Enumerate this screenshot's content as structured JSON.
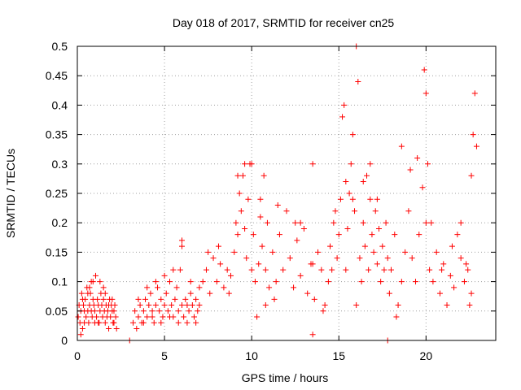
{
  "chart_data": {
    "type": "scatter",
    "title": "Day 018 of 2017, SRMTID for receiver cn25",
    "xlabel": "GPS time / hours",
    "ylabel": "SRMTID / TECUs",
    "xlim": [
      0,
      24
    ],
    "ylim": [
      0,
      0.5
    ],
    "x_ticks": [
      0,
      5,
      10,
      15,
      20
    ],
    "x_tick_labels": [
      "0",
      "5",
      "10",
      "15",
      "20"
    ],
    "y_ticks": [
      0,
      0.05,
      0.1,
      0.15,
      0.2,
      0.25,
      0.3,
      0.35,
      0.4,
      0.45,
      0.5
    ],
    "y_tick_labels": [
      "0",
      "0.05",
      "0.1",
      "0.15",
      "0.2",
      "0.25",
      "0.3",
      "0.35",
      "0.4",
      "0.45",
      "0.5"
    ],
    "grid": true,
    "marker": "+",
    "series": [
      {
        "name": "SRMTID",
        "color": "#ff0000",
        "points": [
          [
            0.05,
            0.04
          ],
          [
            0.1,
            0.06
          ],
          [
            0.15,
            0.03
          ],
          [
            0.2,
            0.05
          ],
          [
            0.25,
            0.08
          ],
          [
            0.3,
            0.02
          ],
          [
            0.35,
            0.06
          ],
          [
            0.4,
            0.05
          ],
          [
            0.45,
            0.07
          ],
          [
            0.5,
            0.04
          ],
          [
            0.55,
            0.09
          ],
          [
            0.6,
            0.05
          ],
          [
            0.65,
            0.03
          ],
          [
            0.7,
            0.06
          ],
          [
            0.75,
            0.08
          ],
          [
            0.8,
            0.05
          ],
          [
            0.85,
            0.04
          ],
          [
            0.9,
            0.1
          ],
          [
            0.95,
            0.06
          ],
          [
            1.0,
            0.05
          ],
          [
            1.05,
            0.11
          ],
          [
            1.1,
            0.04
          ],
          [
            1.15,
            0.07
          ],
          [
            1.2,
            0.06
          ],
          [
            1.25,
            0.03
          ],
          [
            1.3,
            0.05
          ],
          [
            1.35,
            0.08
          ],
          [
            1.4,
            0.06
          ],
          [
            1.45,
            0.04
          ],
          [
            1.5,
            0.07
          ],
          [
            1.55,
            0.05
          ],
          [
            1.6,
            0.03
          ],
          [
            1.65,
            0.06
          ],
          [
            1.7,
            0.04
          ],
          [
            1.75,
            0.05
          ],
          [
            1.8,
            0.02
          ],
          [
            1.85,
            0.07
          ],
          [
            1.9,
            0.04
          ],
          [
            1.95,
            0.06
          ],
          [
            2.0,
            0.05
          ],
          [
            2.05,
            0.03
          ],
          [
            2.1,
            0.05
          ],
          [
            2.15,
            0.06
          ],
          [
            2.2,
            0.04
          ],
          [
            2.25,
            0.02
          ],
          [
            0.3,
            0.07
          ],
          [
            0.6,
            0.08
          ],
          [
            0.9,
            0.07
          ],
          [
            1.2,
            0.03
          ],
          [
            1.5,
            0.09
          ],
          [
            1.8,
            0.06
          ],
          [
            2.1,
            0.03
          ],
          [
            0.4,
            0.03
          ],
          [
            0.8,
            0.1
          ],
          [
            1.0,
            0.03
          ],
          [
            1.6,
            0.08
          ],
          [
            2.0,
            0.07
          ],
          [
            0.2,
            0.01
          ],
          [
            0.7,
            0.09
          ],
          [
            1.3,
            0.1
          ],
          [
            3.0,
            0.0
          ],
          [
            3.2,
            0.03
          ],
          [
            3.3,
            0.05
          ],
          [
            3.4,
            0.02
          ],
          [
            3.5,
            0.04
          ],
          [
            3.6,
            0.06
          ],
          [
            3.7,
            0.03
          ],
          [
            3.8,
            0.05
          ],
          [
            3.9,
            0.07
          ],
          [
            4.0,
            0.04
          ],
          [
            4.1,
            0.06
          ],
          [
            4.2,
            0.08
          ],
          [
            4.3,
            0.05
          ],
          [
            4.4,
            0.03
          ],
          [
            4.5,
            0.06
          ],
          [
            4.6,
            0.09
          ],
          [
            4.7,
            0.05
          ],
          [
            4.8,
            0.07
          ],
          [
            4.9,
            0.04
          ],
          [
            5.0,
            0.06
          ],
          [
            5.1,
            0.08
          ],
          [
            5.2,
            0.05
          ],
          [
            5.3,
            0.1
          ],
          [
            5.4,
            0.06
          ],
          [
            5.5,
            0.04
          ],
          [
            5.6,
            0.07
          ],
          [
            5.7,
            0.09
          ],
          [
            5.8,
            0.05
          ],
          [
            5.9,
            0.12
          ],
          [
            6.0,
            0.06
          ],
          [
            6.1,
            0.04
          ],
          [
            6.2,
            0.07
          ],
          [
            6.3,
            0.03
          ],
          [
            6.4,
            0.05
          ],
          [
            6.5,
            0.08
          ],
          [
            6.6,
            0.06
          ],
          [
            6.7,
            0.04
          ],
          [
            6.8,
            0.07
          ],
          [
            6.9,
            0.05
          ],
          [
            7.0,
            0.09
          ],
          [
            3.5,
            0.07
          ],
          [
            4.0,
            0.09
          ],
          [
            4.5,
            0.1
          ],
          [
            5.0,
            0.11
          ],
          [
            5.5,
            0.12
          ],
          [
            6.0,
            0.16
          ],
          [
            6.5,
            0.1
          ],
          [
            7.0,
            0.06
          ],
          [
            3.8,
            0.03
          ],
          [
            4.3,
            0.04
          ],
          [
            4.8,
            0.03
          ],
          [
            5.3,
            0.04
          ],
          [
            5.8,
            0.03
          ],
          [
            6.3,
            0.06
          ],
          [
            6.8,
            0.03
          ],
          [
            6.0,
            0.17
          ],
          [
            7.2,
            0.1
          ],
          [
            7.4,
            0.12
          ],
          [
            7.6,
            0.08
          ],
          [
            7.8,
            0.14
          ],
          [
            8.0,
            0.1
          ],
          [
            8.2,
            0.13
          ],
          [
            8.4,
            0.09
          ],
          [
            8.6,
            0.12
          ],
          [
            8.8,
            0.11
          ],
          [
            9.0,
            0.15
          ],
          [
            9.1,
            0.2
          ],
          [
            9.2,
            0.18
          ],
          [
            9.3,
            0.25
          ],
          [
            9.4,
            0.22
          ],
          [
            9.5,
            0.28
          ],
          [
            9.6,
            0.19
          ],
          [
            9.7,
            0.14
          ],
          [
            9.8,
            0.24
          ],
          [
            9.9,
            0.3
          ],
          [
            10.0,
            0.12
          ],
          [
            10.1,
            0.18
          ],
          [
            10.2,
            0.1
          ],
          [
            10.3,
            0.04
          ],
          [
            10.4,
            0.13
          ],
          [
            10.5,
            0.21
          ],
          [
            10.6,
            0.16
          ],
          [
            10.7,
            0.28
          ],
          [
            10.8,
            0.12
          ],
          [
            10.9,
            0.2
          ],
          [
            11.0,
            0.09
          ],
          [
            11.2,
            0.15
          ],
          [
            11.4,
            0.1
          ],
          [
            11.6,
            0.18
          ],
          [
            11.8,
            0.12
          ],
          [
            12.0,
            0.22
          ],
          [
            12.2,
            0.14
          ],
          [
            12.4,
            0.09
          ],
          [
            12.6,
            0.17
          ],
          [
            12.8,
            0.11
          ],
          [
            13.0,
            0.19
          ],
          [
            13.2,
            0.08
          ],
          [
            13.4,
            0.13
          ],
          [
            13.5,
            0.3
          ],
          [
            13.6,
            0.07
          ],
          [
            13.8,
            0.15
          ],
          [
            14.0,
            0.12
          ],
          [
            14.2,
            0.06
          ],
          [
            14.4,
            0.1
          ],
          [
            7.5,
            0.15
          ],
          [
            8.1,
            0.16
          ],
          [
            8.7,
            0.08
          ],
          [
            9.2,
            0.28
          ],
          [
            9.6,
            0.3
          ],
          [
            10.0,
            0.3
          ],
          [
            10.5,
            0.24
          ],
          [
            11.5,
            0.23
          ],
          [
            12.5,
            0.2
          ],
          [
            13.5,
            0.13
          ],
          [
            14.1,
            0.05
          ],
          [
            13.5,
            0.01
          ],
          [
            10.8,
            0.06
          ],
          [
            11.3,
            0.07
          ],
          [
            12.8,
            0.2
          ],
          [
            14.5,
            0.16
          ],
          [
            14.6,
            0.12
          ],
          [
            14.7,
            0.2
          ],
          [
            14.8,
            0.22
          ],
          [
            14.9,
            0.14
          ],
          [
            15.0,
            0.18
          ],
          [
            15.1,
            0.24
          ],
          [
            15.2,
            0.38
          ],
          [
            15.3,
            0.4
          ],
          [
            15.4,
            0.27
          ],
          [
            15.5,
            0.19
          ],
          [
            15.6,
            0.25
          ],
          [
            15.7,
            0.3
          ],
          [
            15.8,
            0.35
          ],
          [
            15.9,
            0.22
          ],
          [
            16.0,
            0.5
          ],
          [
            16.1,
            0.44
          ],
          [
            16.2,
            0.14
          ],
          [
            16.3,
            0.1
          ],
          [
            16.4,
            0.2
          ],
          [
            16.5,
            0.16
          ],
          [
            16.6,
            0.28
          ],
          [
            16.7,
            0.12
          ],
          [
            16.8,
            0.24
          ],
          [
            16.9,
            0.18
          ],
          [
            17.0,
            0.15
          ],
          [
            17.1,
            0.22
          ],
          [
            17.2,
            0.13
          ],
          [
            17.3,
            0.19
          ],
          [
            17.4,
            0.1
          ],
          [
            17.5,
            0.16
          ],
          [
            17.6,
            0.12
          ],
          [
            17.7,
            0.2
          ],
          [
            17.8,
            0.14
          ],
          [
            17.9,
            0.08
          ],
          [
            18.0,
            0.12
          ],
          [
            18.2,
            0.18
          ],
          [
            18.4,
            0.06
          ],
          [
            18.6,
            0.1
          ],
          [
            18.8,
            0.15
          ],
          [
            19.0,
            0.22
          ],
          [
            19.2,
            0.14
          ],
          [
            19.4,
            0.1
          ],
          [
            19.6,
            0.18
          ],
          [
            19.8,
            0.26
          ],
          [
            19.9,
            0.46
          ],
          [
            20.0,
            0.42
          ],
          [
            20.1,
            0.3
          ],
          [
            20.2,
            0.12
          ],
          [
            20.4,
            0.1
          ],
          [
            20.6,
            0.15
          ],
          [
            20.8,
            0.08
          ],
          [
            21.0,
            0.13
          ],
          [
            21.2,
            0.06
          ],
          [
            21.4,
            0.11
          ],
          [
            21.6,
            0.09
          ],
          [
            21.8,
            0.18
          ],
          [
            22.0,
            0.14
          ],
          [
            22.2,
            0.1
          ],
          [
            22.4,
            0.12
          ],
          [
            22.6,
            0.28
          ],
          [
            22.7,
            0.35
          ],
          [
            22.8,
            0.42
          ],
          [
            22.9,
            0.33
          ],
          [
            22.5,
            0.06
          ],
          [
            22.3,
            0.13
          ],
          [
            15.4,
            0.12
          ],
          [
            15.8,
            0.24
          ],
          [
            16.0,
            0.06
          ],
          [
            16.4,
            0.27
          ],
          [
            16.8,
            0.3
          ],
          [
            17.2,
            0.24
          ],
          [
            17.8,
            0.0
          ],
          [
            18.3,
            0.04
          ],
          [
            18.6,
            0.33
          ],
          [
            19.1,
            0.29
          ],
          [
            19.5,
            0.31
          ],
          [
            20.0,
            0.2
          ],
          [
            20.3,
            0.2
          ],
          [
            20.9,
            0.12
          ],
          [
            21.5,
            0.16
          ],
          [
            22.0,
            0.2
          ],
          [
            22.6,
            0.08
          ]
        ]
      }
    ]
  }
}
